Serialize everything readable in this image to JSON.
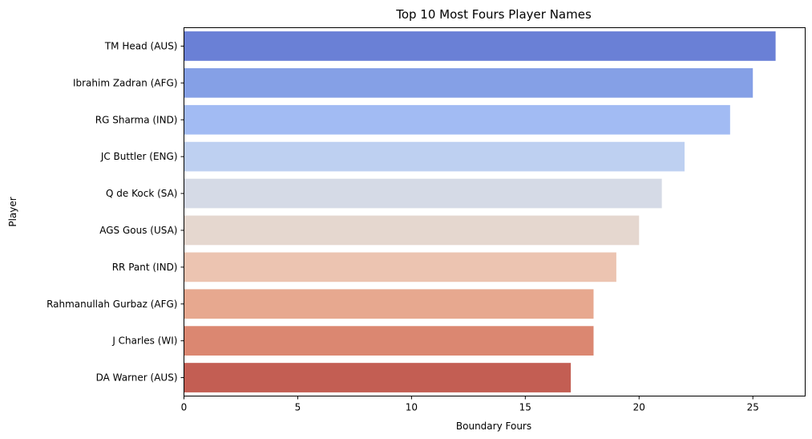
{
  "chart_data": {
    "type": "bar",
    "orientation": "horizontal",
    "title": "Top 10 Most Fours Player Names",
    "xlabel": "Boundary Fours",
    "ylabel": "Player",
    "xlim": [
      0,
      27.3
    ],
    "xticks": [
      0,
      5,
      10,
      15,
      20,
      25
    ],
    "grid": false,
    "categories": [
      "TM Head (AUS)",
      "Ibrahim Zadran (AFG)",
      "RG Sharma (IND)",
      "JC Buttler (ENG)",
      "Q de Kock (SA)",
      "AGS Gous (USA)",
      "RR Pant (IND)",
      "Rahmanullah Gurbaz (AFG)",
      "J Charles (WI)",
      "DA Warner (AUS)"
    ],
    "values": [
      26,
      25,
      24,
      22,
      21,
      20,
      19,
      18,
      18,
      17
    ],
    "colors": [
      "#6a80d6",
      "#85a0e6",
      "#a2bbf3",
      "#bed0f1",
      "#d5dae6",
      "#e5d7cf",
      "#ecc4b1",
      "#e7a88f",
      "#db8771",
      "#c35e53"
    ]
  }
}
